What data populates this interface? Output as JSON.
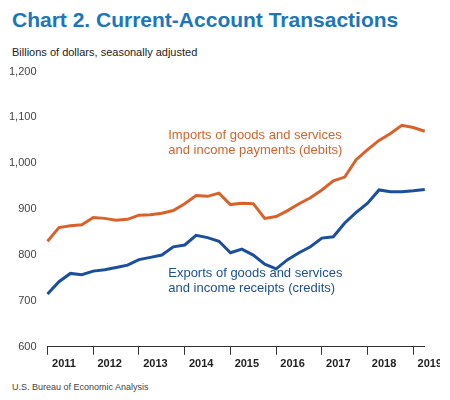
{
  "chart_data": {
    "type": "line",
    "title": "Chart 2. Current-Account Transactions",
    "subtitle": "Billions of dollars, seasonally adjusted",
    "source": "U.S. Bureau of Economic Analysis",
    "categories": [
      null,
      "2011",
      null,
      null,
      null,
      "2012",
      null,
      null,
      null,
      "2013",
      null,
      null,
      null,
      "2014",
      null,
      null,
      null,
      "2015",
      null,
      null,
      null,
      "2016",
      null,
      null,
      null,
      "2017",
      null,
      null,
      null,
      "2018",
      null,
      null,
      null,
      "2019"
    ],
    "series": [
      {
        "name": "Imports of goods and services and income payments (debits)",
        "color": "#d9622b",
        "values": [
          830,
          860,
          864,
          866,
          882,
          880,
          876,
          878,
          887,
          888,
          891,
          897,
          912,
          930,
          928,
          935,
          910,
          913,
          912,
          880,
          884,
          897,
          912,
          925,
          942,
          962,
          970,
          1008,
          1030,
          1050,
          1065,
          1083,
          1078,
          1070
        ]
      },
      {
        "name": "Exports of goods and services and income receipts (credits)",
        "color": "#1b4f9c",
        "values": [
          715,
          742,
          760,
          757,
          765,
          768,
          773,
          778,
          790,
          795,
          800,
          818,
          822,
          843,
          838,
          830,
          805,
          813,
          800,
          780,
          770,
          790,
          805,
          818,
          837,
          840,
          870,
          893,
          913,
          942,
          938,
          938,
          940,
          943
        ]
      }
    ],
    "ylim": [
      600,
      1200
    ],
    "yticks": [
      600,
      700,
      800,
      900,
      {
        "value": 1000,
        "label": "1,000"
      },
      {
        "value": 1100,
        "label": "1,100"
      },
      {
        "value": 1200,
        "label": "1,200"
      }
    ],
    "grid": false
  }
}
